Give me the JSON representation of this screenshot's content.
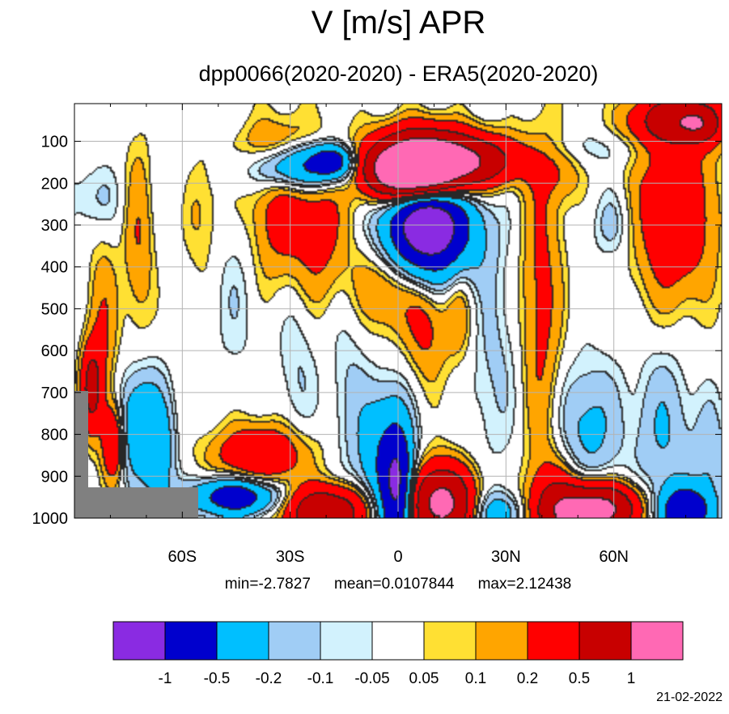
{
  "title": "V [m/s] APR",
  "subtitle": "dpp0066(2020-2020) - ERA5(2020-2020)",
  "stats": {
    "min": "min=-2.7827",
    "mean": "mean=0.0107844",
    "max": "max=2.12438"
  },
  "date": "21-02-2022",
  "colors": {
    "missing": "#808080",
    "grid": "#b3b3b3",
    "levels": [
      "#8a2be2",
      "#0000cd",
      "#00bfff",
      "#a0cdf5",
      "#d2f2fd",
      "#ffffff",
      "#ffe033",
      "#ffa500",
      "#ff0000",
      "#c80000",
      "#ff69b4"
    ]
  },
  "chart_data": {
    "type": "heatmap",
    "variable": "V [m/s]",
    "month": "APR",
    "x_range": [
      -90,
      90
    ],
    "y_range": [
      1000,
      10
    ],
    "xticks": [
      {
        "value": -60,
        "label": "60S"
      },
      {
        "value": -30,
        "label": "30S"
      },
      {
        "value": 0,
        "label": "0"
      },
      {
        "value": 30,
        "label": "30N"
      },
      {
        "value": 60,
        "label": "60N"
      }
    ],
    "yticks": [
      {
        "value": 100,
        "label": "100"
      },
      {
        "value": 200,
        "label": "200"
      },
      {
        "value": 300,
        "label": "300"
      },
      {
        "value": 400,
        "label": "400"
      },
      {
        "value": 500,
        "label": "500"
      },
      {
        "value": 600,
        "label": "600"
      },
      {
        "value": 700,
        "label": "700"
      },
      {
        "value": 800,
        "label": "800"
      },
      {
        "value": 900,
        "label": "900"
      },
      {
        "value": 1000,
        "label": "1000"
      }
    ],
    "contour_levels": [
      {
        "value": -1,
        "label": "-1"
      },
      {
        "value": -0.5,
        "label": "-0.5"
      },
      {
        "value": -0.2,
        "label": "-0.2"
      },
      {
        "value": -0.1,
        "label": "-0.1"
      },
      {
        "value": -0.05,
        "label": "-0.05"
      },
      {
        "value": 0.05,
        "label": "0.05"
      },
      {
        "value": 0.1,
        "label": "0.1"
      },
      {
        "value": 0.2,
        "label": "0.2"
      },
      {
        "value": 0.5,
        "label": "0.5"
      },
      {
        "value": 1,
        "label": "1"
      }
    ],
    "features": [
      {
        "x": 7,
        "y": 160,
        "sx": 9,
        "sy": 55,
        "amp": 1.6
      },
      {
        "x": 2,
        "y": 180,
        "sx": 7,
        "sy": 40,
        "amp": 0.9
      },
      {
        "x": 12,
        "y": 150,
        "sx": 12,
        "sy": 40,
        "amp": 0.6
      },
      {
        "x": 8,
        "y": 310,
        "sx": 9,
        "sy": 90,
        "amp": -1.1
      },
      {
        "x": 9,
        "y": 300,
        "sx": 5,
        "sy": 50,
        "amp": -0.7
      },
      {
        "x": -27,
        "y": 160,
        "sx": 9,
        "sy": 40,
        "amp": -0.7
      },
      {
        "x": -18,
        "y": 150,
        "sx": 4,
        "sy": 25,
        "amp": -0.6
      },
      {
        "x": -32,
        "y": 240,
        "sx": 8,
        "sy": 120,
        "amp": 0.2
      },
      {
        "x": -34,
        "y": 120,
        "sx": 8,
        "sy": 40,
        "amp": 0.2
      },
      {
        "x": -22,
        "y": 330,
        "sx": 10,
        "sy": 130,
        "amp": 0.25
      },
      {
        "x": -2,
        "y": 440,
        "sx": 6,
        "sy": 80,
        "amp": 0.3
      },
      {
        "x": 8,
        "y": 530,
        "sx": 4,
        "sy": 100,
        "amp": 0.25
      },
      {
        "x": 17,
        "y": 500,
        "sx": 3,
        "sy": 90,
        "amp": 0.2
      },
      {
        "x": 25,
        "y": 145,
        "sx": 8,
        "sy": 40,
        "amp": 0.35
      },
      {
        "x": 40,
        "y": 480,
        "sx": 4,
        "sy": 280,
        "amp": 0.25
      },
      {
        "x": 46,
        "y": 180,
        "sx": 4,
        "sy": 50,
        "amp": 0.15
      },
      {
        "x": 77,
        "y": 270,
        "sx": 8,
        "sy": 150,
        "amp": 0.4
      },
      {
        "x": 77,
        "y": 50,
        "sx": 8,
        "sy": 40,
        "amp": 0.7
      },
      {
        "x": 84,
        "y": 60,
        "sx": 4,
        "sy": 30,
        "amp": 0.5
      },
      {
        "x": 60,
        "y": 300,
        "sx": 4,
        "sy": 60,
        "amp": -0.15
      },
      {
        "x": 56,
        "y": 120,
        "sx": 12,
        "sy": 30,
        "amp": -0.08
      },
      {
        "x": -56,
        "y": 270,
        "sx": 5,
        "sy": 110,
        "amp": 0.15
      },
      {
        "x": -72,
        "y": 330,
        "sx": 3,
        "sy": 160,
        "amp": 0.2
      },
      {
        "x": -82,
        "y": 560,
        "sx": 3,
        "sy": 160,
        "amp": 0.2
      },
      {
        "x": -84,
        "y": 240,
        "sx": 6,
        "sy": 60,
        "amp": -0.12
      },
      {
        "x": -61,
        "y": 230,
        "sx": 4,
        "sy": 120,
        "amp": -0.1
      },
      {
        "x": -45,
        "y": 430,
        "sx": 5,
        "sy": 160,
        "amp": -0.1
      },
      {
        "x": -28,
        "y": 560,
        "sx": 4,
        "sy": 200,
        "amp": -0.12
      },
      {
        "x": -14,
        "y": 610,
        "sx": 4,
        "sy": 220,
        "amp": -0.1
      },
      {
        "x": 27,
        "y": 640,
        "sx": 5,
        "sy": 170,
        "amp": -0.12
      },
      {
        "x": 53,
        "y": 790,
        "sx": 6,
        "sy": 110,
        "amp": -0.25
      },
      {
        "x": 74,
        "y": 800,
        "sx": 6,
        "sy": 140,
        "amp": -0.2
      },
      {
        "x": 87,
        "y": 860,
        "sx": 3,
        "sy": 90,
        "amp": -0.18
      },
      {
        "x": -38,
        "y": 850,
        "sx": 9,
        "sy": 50,
        "amp": 0.45
      },
      {
        "x": -45,
        "y": 950,
        "sx": 8,
        "sy": 30,
        "amp": -0.8
      },
      {
        "x": -20,
        "y": 985,
        "sx": 8,
        "sy": 40,
        "amp": 0.9
      },
      {
        "x": 0,
        "y": 940,
        "sx": 3,
        "sy": 100,
        "amp": -1.0
      },
      {
        "x": -4,
        "y": 850,
        "sx": 5,
        "sy": 110,
        "amp": -0.4
      },
      {
        "x": 12,
        "y": 965,
        "sx": 6,
        "sy": 60,
        "amp": 1.2
      },
      {
        "x": 28,
        "y": 990,
        "sx": 5,
        "sy": 35,
        "amp": -0.35
      },
      {
        "x": 44,
        "y": 990,
        "sx": 5,
        "sy": 80,
        "amp": 0.5
      },
      {
        "x": 55,
        "y": 980,
        "sx": 8,
        "sy": 40,
        "amp": 1.3
      },
      {
        "x": 80,
        "y": 985,
        "sx": 5,
        "sy": 40,
        "amp": -0.9
      },
      {
        "x": -72,
        "y": 780,
        "sx": 4,
        "sy": 90,
        "amp": -0.4
      },
      {
        "x": -79,
        "y": 820,
        "sx": 2,
        "sy": 60,
        "amp": 0.5
      },
      {
        "x": -85,
        "y": 690,
        "sx": 2,
        "sy": 70,
        "amp": 0.6
      },
      {
        "x": -66,
        "y": 850,
        "sx": 3,
        "sy": 100,
        "amp": -0.3
      }
    ]
  }
}
